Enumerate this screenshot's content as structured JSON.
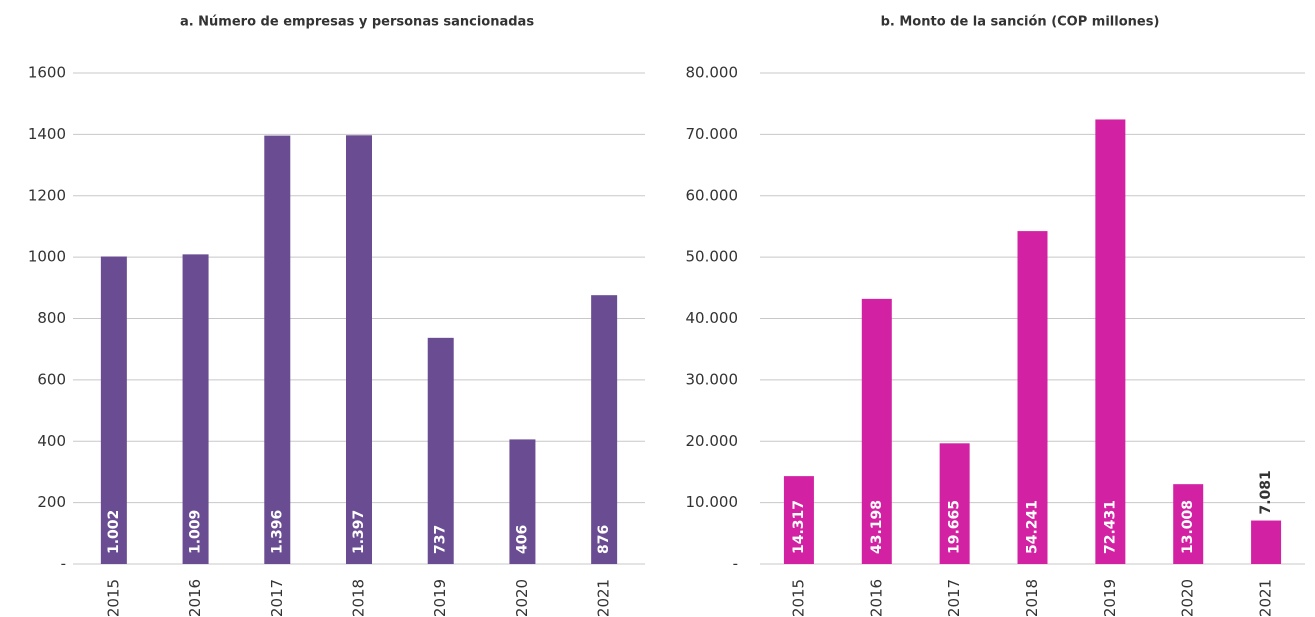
{
  "chart_data": [
    {
      "type": "bar",
      "title": "a. Número de empresas y personas sancionadas",
      "categories": [
        "2015",
        "2016",
        "2017",
        "2018",
        "2019",
        "2020",
        "2021"
      ],
      "values": [
        1002,
        1009,
        1396,
        1397,
        737,
        406,
        876
      ],
      "value_labels": [
        "1.002",
        "1.009",
        "1.396",
        "1.397",
        "737",
        "406",
        "876"
      ],
      "color": "#6a4c93",
      "ylim": [
        0,
        1600
      ],
      "yticks": [
        {
          "value": 0,
          "label": "-"
        },
        200,
        400,
        600,
        800,
        1000,
        1200,
        1400,
        1600
      ],
      "grid": true
    },
    {
      "type": "bar",
      "title": "b. Monto de la sanción (COP millones)",
      "categories": [
        "2015",
        "2016",
        "2017",
        "2018",
        "2019",
        "2020",
        "2021"
      ],
      "values": [
        14317,
        43198,
        19665,
        54241,
        72431,
        13008,
        7081
      ],
      "value_labels": [
        "14.317",
        "43.198",
        "19.665",
        "54.241",
        "72.431",
        "13.008",
        "7.081"
      ],
      "color": "#d321a3",
      "ylim": [
        0,
        80000
      ],
      "yticks": [
        {
          "value": 0,
          "label": "-"
        },
        {
          "value": 10000,
          "label": "10.000"
        },
        {
          "value": 20000,
          "label": "20.000"
        },
        {
          "value": 30000,
          "label": "30.000"
        },
        {
          "value": 40000,
          "label": "40.000"
        },
        {
          "value": 50000,
          "label": "50.000"
        },
        {
          "value": 60000,
          "label": "60.000"
        },
        {
          "value": 70000,
          "label": "70.000"
        },
        {
          "value": 80000,
          "label": "80.000"
        }
      ],
      "grid": true
    }
  ]
}
